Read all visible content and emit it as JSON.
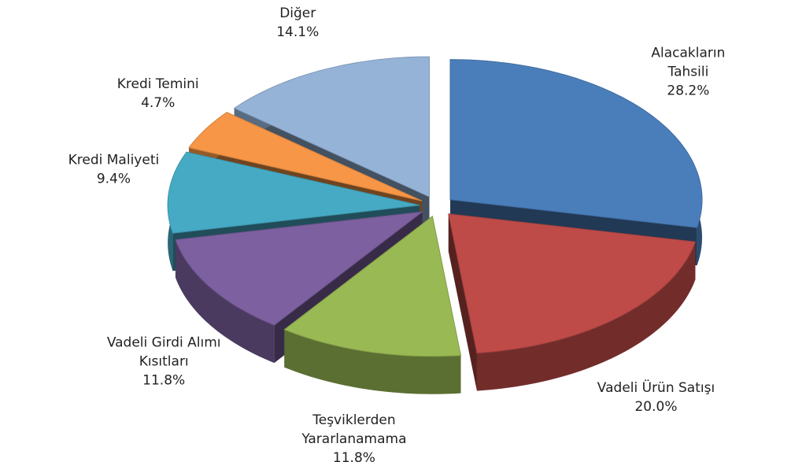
{
  "chart_data": {
    "type": "pie",
    "categories": [
      "Alacakların Tahsili",
      "Vadeli Ürün Satışı",
      "Teşviklerden Yararlanamama",
      "Vadeli Girdi Alımı Kısıtları",
      "Kredi Maliyeti",
      "Kredi Temini",
      "Diğer"
    ],
    "values": [
      28.2,
      20.0,
      11.8,
      11.8,
      9.4,
      4.7,
      14.1
    ],
    "value_labels": [
      "28.2%",
      "20.0%",
      "11.8%",
      "11.8%",
      "9.4%",
      "4.7%",
      "14.1%"
    ],
    "colors": [
      "#4a7ebb",
      "#be4b48",
      "#98b954",
      "#7d60a0",
      "#46aac5",
      "#f79646",
      "#95b3d7"
    ]
  }
}
